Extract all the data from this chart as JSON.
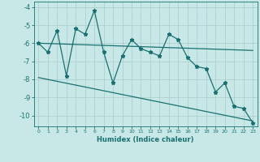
{
  "xlabel": "Humidex (Indice chaleur)",
  "bg_color": "#c8e8e8",
  "line_color": "#1a7070",
  "grid_color": "#add0d0",
  "xlim": [
    -0.5,
    23.5
  ],
  "ylim": [
    -10.6,
    -3.7
  ],
  "yticks": [
    -10,
    -9,
    -8,
    -7,
    -6,
    -5,
    -4
  ],
  "xticks": [
    0,
    1,
    2,
    3,
    4,
    5,
    6,
    7,
    8,
    9,
    10,
    11,
    12,
    13,
    14,
    15,
    16,
    17,
    18,
    19,
    20,
    21,
    22,
    23
  ],
  "main_x": [
    0,
    1,
    2,
    3,
    4,
    5,
    6,
    7,
    8,
    9,
    10,
    11,
    12,
    13,
    14,
    15,
    16,
    17,
    18,
    19,
    20,
    21,
    22,
    23
  ],
  "main_y": [
    -6.0,
    -6.5,
    -5.3,
    -7.8,
    -5.2,
    -5.5,
    -4.2,
    -6.5,
    -8.2,
    -6.7,
    -5.8,
    -6.3,
    -6.5,
    -6.7,
    -5.5,
    -5.8,
    -6.8,
    -7.3,
    -7.4,
    -8.7,
    -8.2,
    -9.5,
    -9.6,
    -10.4
  ],
  "upper_line_x": [
    0,
    23
  ],
  "upper_line_y": [
    -6.0,
    -6.4
  ],
  "lower_line_x": [
    0,
    23
  ],
  "lower_line_y": [
    -7.9,
    -10.3
  ],
  "xlabel_fontsize": 6,
  "ytick_fontsize": 6,
  "xtick_fontsize": 4.5
}
